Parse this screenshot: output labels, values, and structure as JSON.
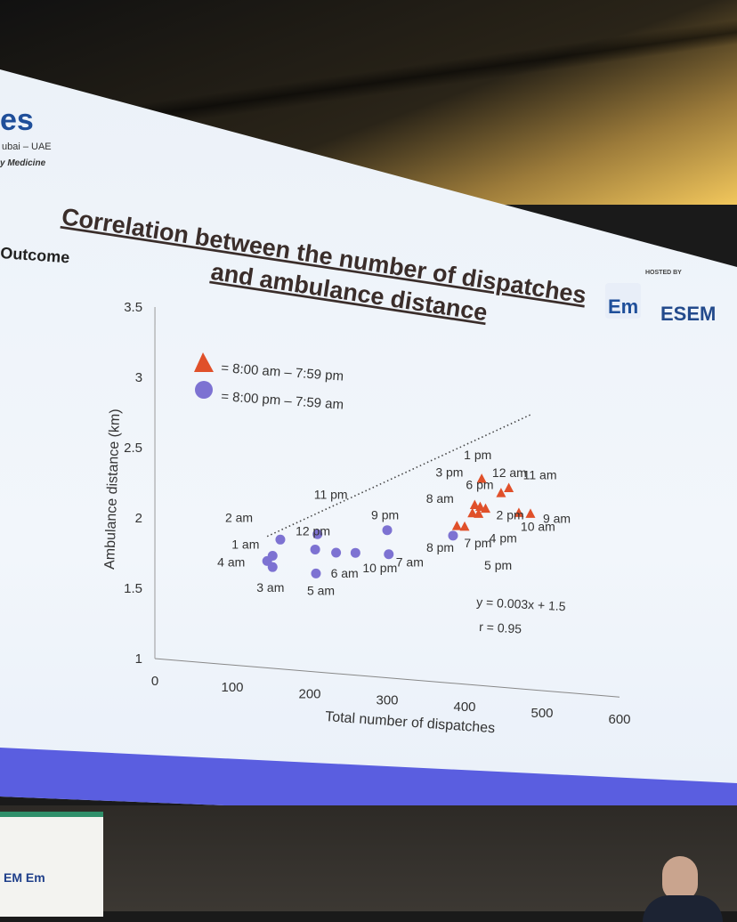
{
  "slide": {
    "logo_fragment": "es",
    "corner_line1": "ubai – UAE",
    "corner_line2": "y Medicine",
    "side_heading": "Outcome",
    "hosted_by": "HOSTED BY",
    "logo_em": "Em",
    "logo_esem": "ESEM",
    "banner_logos": "EM  Em"
  },
  "chart_data": {
    "type": "scatter",
    "title": "Correlation between the number of dispatches and ambulance distance",
    "title_line1": "Correlation between the number of dispatches",
    "title_line2": "and ambulance distance",
    "xlabel": "Total number of dispatches",
    "ylabel": "Ambulance distance (km)",
    "xlim": [
      0,
      600
    ],
    "ylim": [
      1,
      3.5
    ],
    "x_ticks": [
      "0",
      "100",
      "200",
      "300",
      "400",
      "500",
      "600"
    ],
    "y_ticks": [
      "1",
      "1.5",
      "2",
      "2.5",
      "3",
      "3.5"
    ],
    "grid": false,
    "legend_position": "top-left",
    "series": [
      {
        "name": "= 8:00 am – 7:59 pm",
        "marker": "triangle",
        "color": "#e0502a",
        "points": [
          {
            "label": "1 pm",
            "x": 422,
            "y": 2.47
          },
          {
            "label": "12 am",
            "x": 447,
            "y": 2.38
          },
          {
            "label": "11 am",
            "x": 457,
            "y": 2.42
          },
          {
            "label": "3 pm",
            "x": 413,
            "y": 2.28
          },
          {
            "label": "6 pm",
            "x": 420,
            "y": 2.27
          },
          {
            "label": "8 am",
            "x": 410,
            "y": 2.22
          },
          {
            "label": "2 pm",
            "x": 427,
            "y": 2.26
          },
          {
            "label": "4 pm",
            "x": 418,
            "y": 2.22
          },
          {
            "label": "9 am",
            "x": 485,
            "y": 2.25
          },
          {
            "label": "10 am",
            "x": 470,
            "y": 2.25
          },
          {
            "label": "7 pm",
            "x": 390,
            "y": 2.12
          },
          {
            "label": "5 pm",
            "x": 400,
            "y": 2.12
          }
        ]
      },
      {
        "name": "= 8:00 pm – 7:59 am",
        "marker": "circle",
        "color": "#7d72d2",
        "points": [
          {
            "label": "8 pm",
            "x": 385,
            "y": 2.05
          },
          {
            "label": "11 pm",
            "x": 210,
            "y": 1.98
          },
          {
            "label": "9 pm",
            "x": 300,
            "y": 2.05
          },
          {
            "label": "2 am",
            "x": 162,
            "y": 1.92
          },
          {
            "label": "12 pm",
            "x": 207,
            "y": 1.87
          },
          {
            "label": "1 am",
            "x": 152,
            "y": 1.8
          },
          {
            "label": "4 am",
            "x": 145,
            "y": 1.76
          },
          {
            "label": "3 am",
            "x": 152,
            "y": 1.72
          },
          {
            "label": "5 am",
            "x": 208,
            "y": 1.7
          },
          {
            "label": "6 am",
            "x": 234,
            "y": 1.86
          },
          {
            "label": "10 pm",
            "x": 259,
            "y": 1.87
          },
          {
            "label": "7 am",
            "x": 302,
            "y": 1.88
          }
        ]
      }
    ],
    "trendline": {
      "slope": 0.003,
      "intercept": 1.5,
      "x_from": 145,
      "x_to": 485
    },
    "annotations": [
      "y = 0.003x + 1.5",
      "r = 0.95"
    ]
  }
}
